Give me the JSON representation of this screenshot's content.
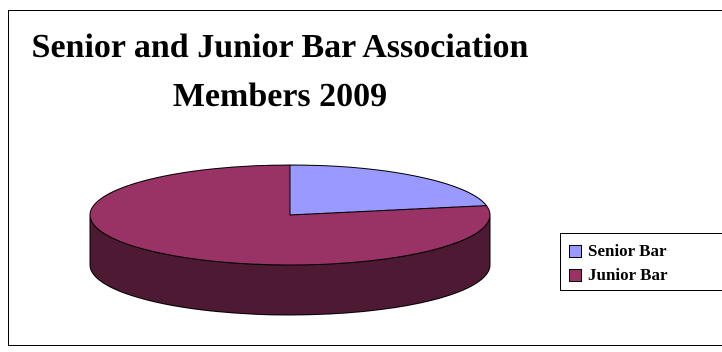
{
  "chart_data": {
    "type": "pie",
    "title_lines": [
      "Senior and Junior Bar Association",
      "Members 2009"
    ],
    "categories": [
      "Senior Bar",
      "Junior Bar"
    ],
    "values": [
      22,
      78
    ],
    "colors": [
      "#9999ff",
      "#993366"
    ],
    "side_color": "#4d1933",
    "style": "3d",
    "legend_position": "right"
  }
}
